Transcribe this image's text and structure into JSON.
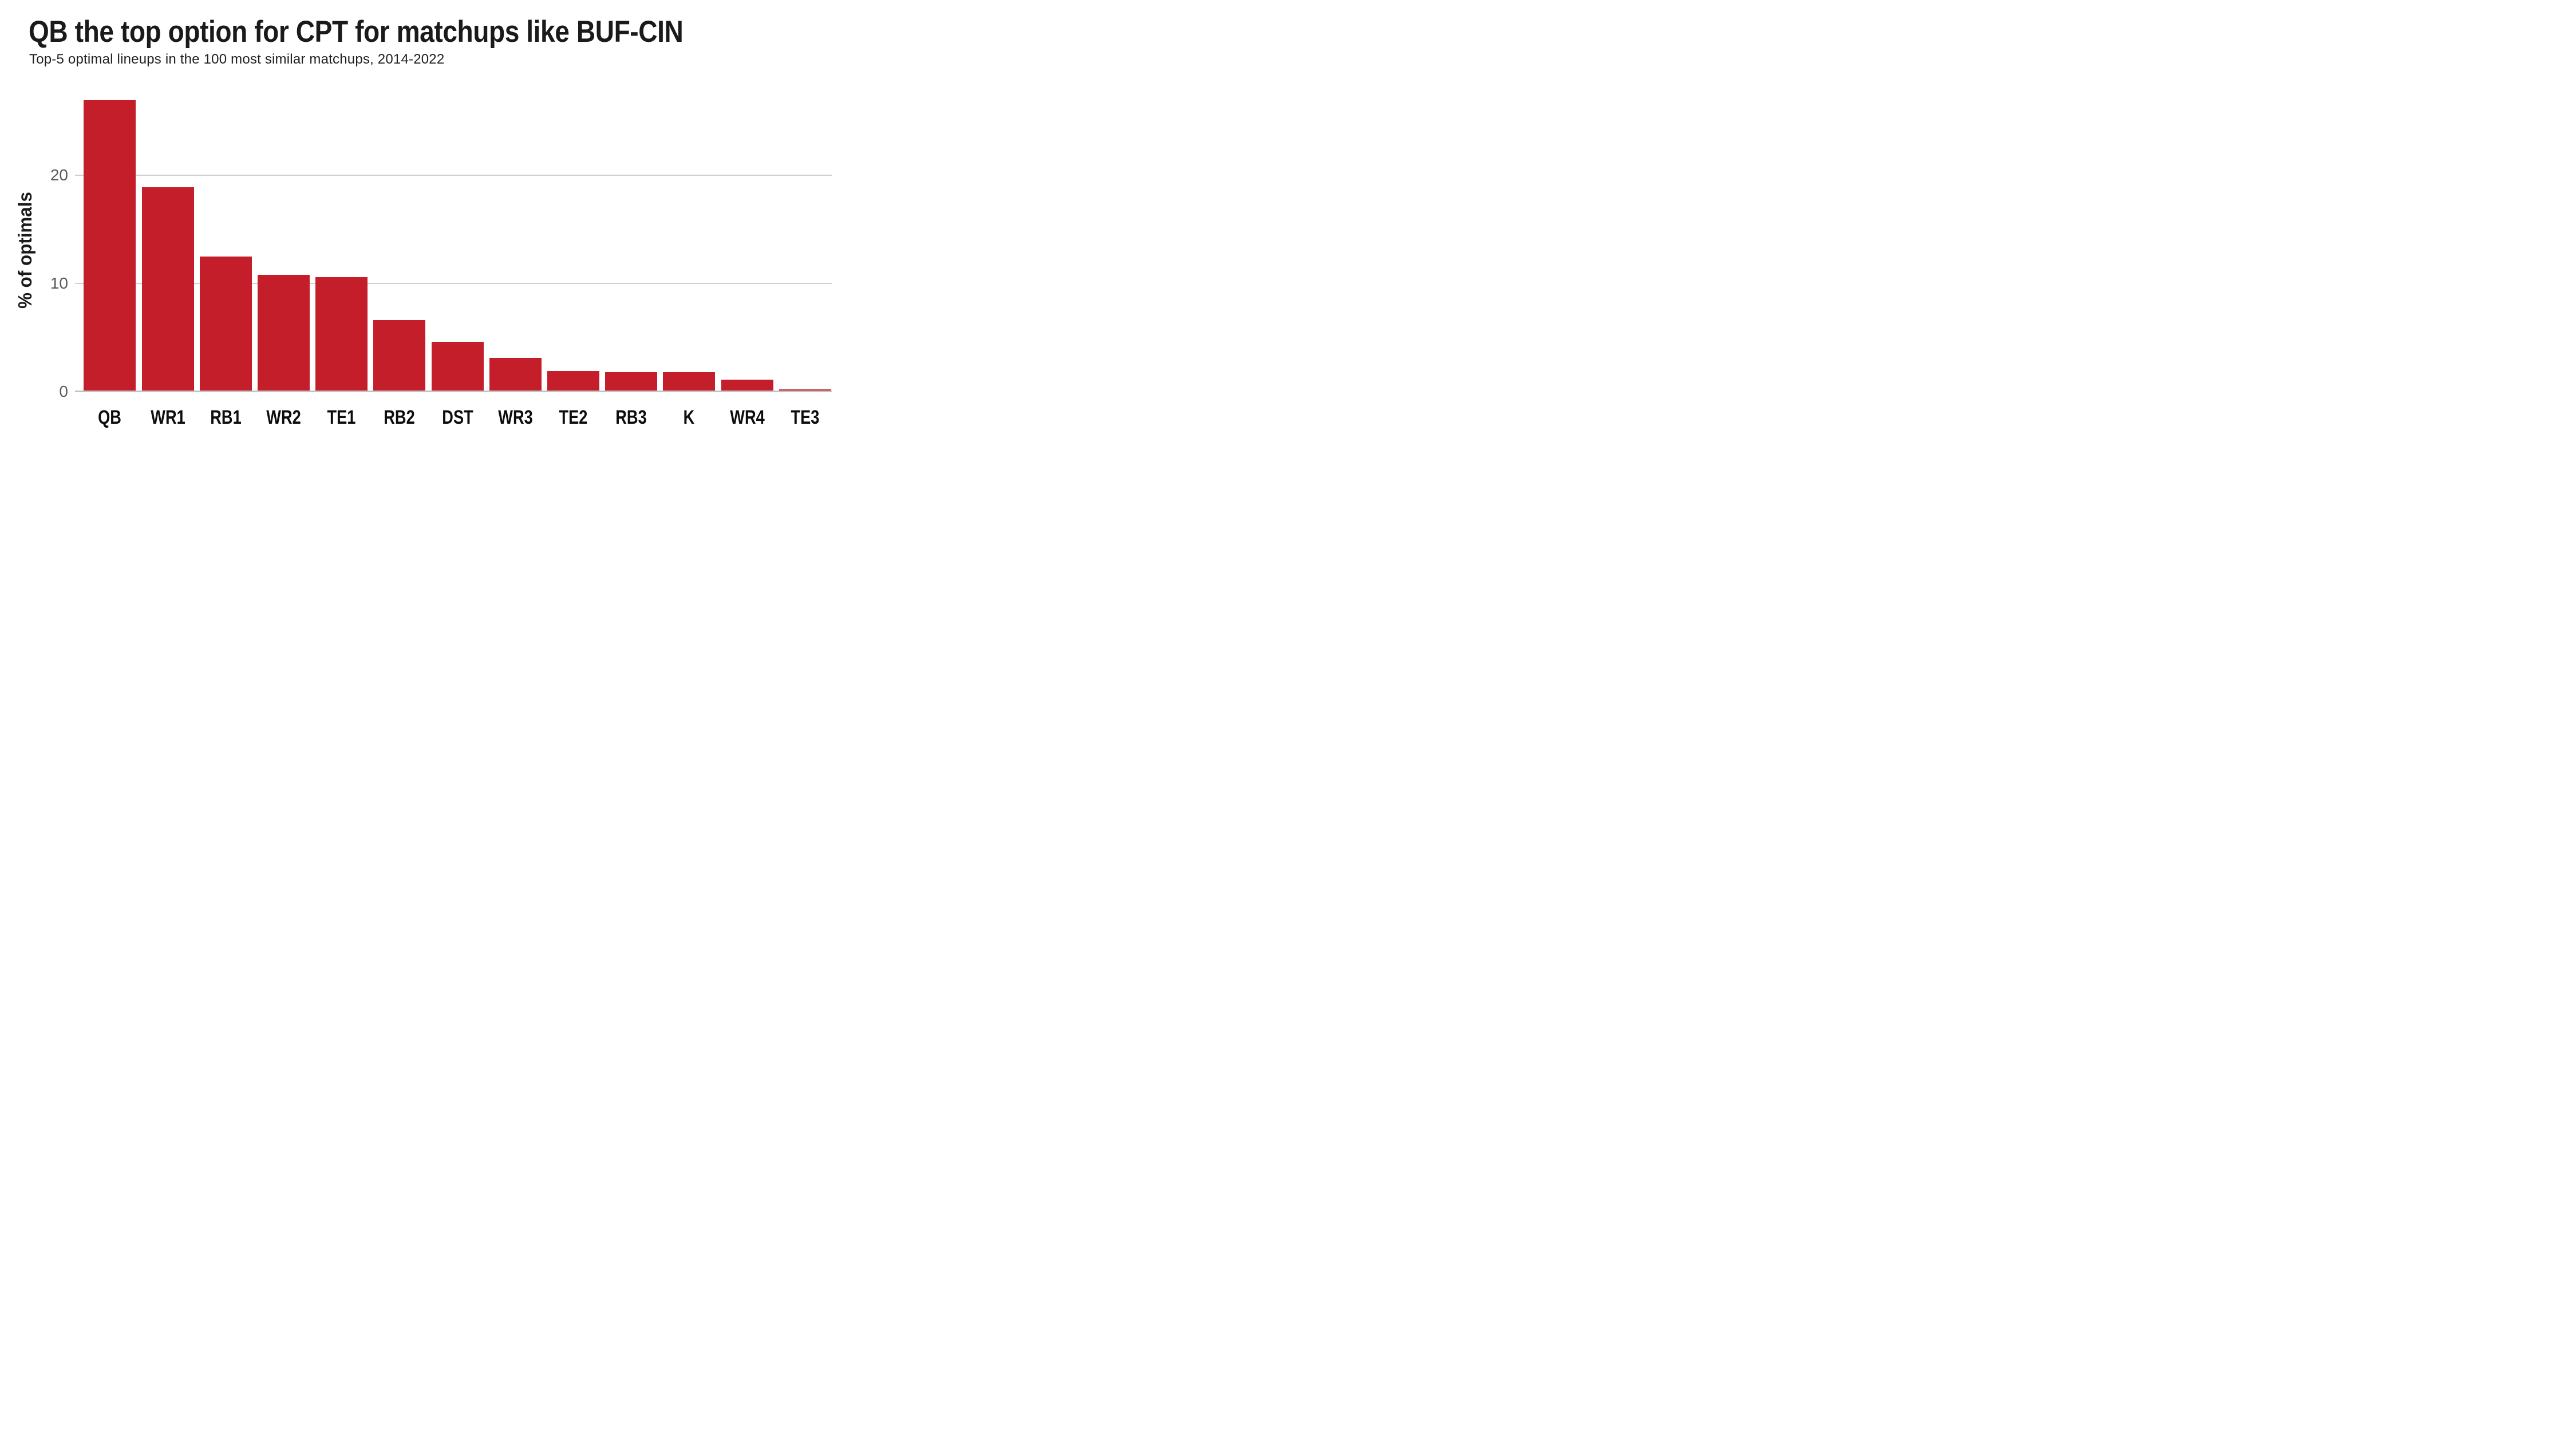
{
  "chart_data": {
    "type": "bar",
    "title": "QB the top option for CPT for matchups like BUF-CIN",
    "subtitle": "Top-5 optimal lineups in the 100 most similar matchups, 2014-2022",
    "ylabel": "% of optimals",
    "xlabel": "",
    "categories": [
      "QB",
      "WR1",
      "RB1",
      "WR2",
      "TE1",
      "RB2",
      "DST",
      "WR3",
      "TE2",
      "RB3",
      "K",
      "WR4",
      "TE3"
    ],
    "values": [
      26.8,
      18.8,
      12.4,
      10.7,
      10.5,
      6.5,
      4.5,
      3.0,
      1.8,
      1.7,
      1.7,
      1.0,
      0.1
    ],
    "yticks": [
      0,
      10,
      20
    ],
    "ylim": [
      0,
      28
    ],
    "grid": "horizontal-only",
    "legend": "none",
    "colors": {
      "bar": "#c41e2a",
      "title": "#1a1a1a",
      "subtitle": "#1f1f1f",
      "tick_label": "#58595b",
      "x_label": "#0d0d0d",
      "gridline": "#d0d0d2",
      "axis_line": "#c3c3c5",
      "background": "#ffffff"
    }
  }
}
